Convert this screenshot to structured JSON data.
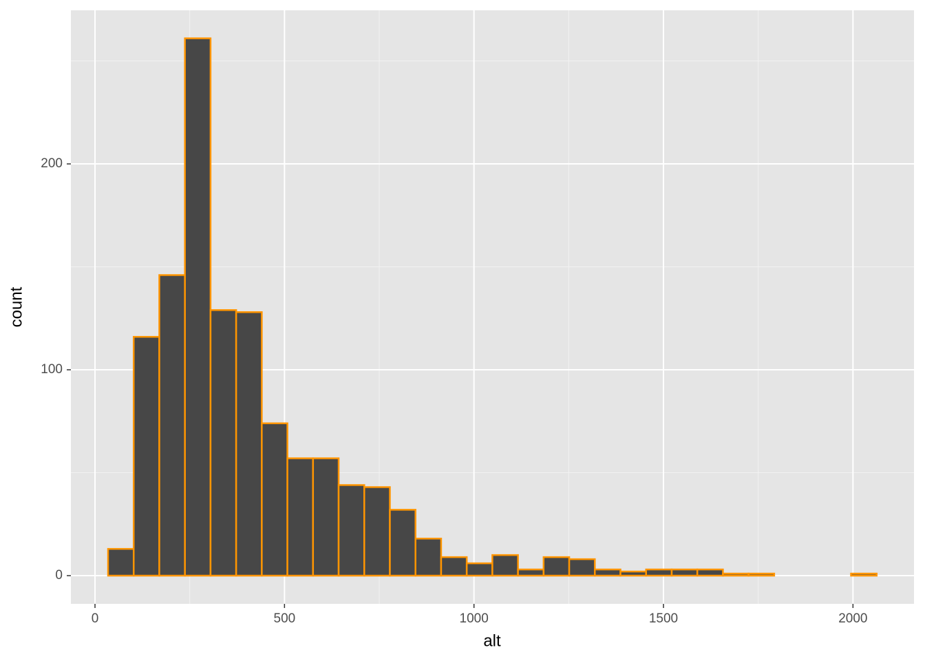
{
  "chart_data": {
    "type": "histogram",
    "x_label": "alt",
    "y_label": "count",
    "bins": [
      34.5,
      102.1,
      169.7,
      237.3,
      304.9,
      372.5,
      440.1,
      507.7,
      575.3,
      642.9,
      710.5,
      778.1,
      845.7,
      913.3,
      980.9,
      1048.5,
      1116.1,
      1183.7,
      1251.3,
      1318.9,
      1386.5,
      1454.1,
      1521.7,
      1589.3,
      1656.9,
      1724.5,
      1792.1,
      1859.7,
      1927.3,
      1994.9,
      2062.5
    ],
    "values": [
      13,
      116,
      146,
      261,
      129,
      128,
      74,
      57,
      57,
      44,
      43,
      32,
      18,
      9,
      6,
      10,
      3,
      9,
      8,
      3,
      2,
      3,
      3,
      3,
      1,
      1,
      0,
      0,
      0,
      1
    ],
    "color": "#474747",
    "edge_color": "#ff9500",
    "xlim": [
      -63.6,
      2161
    ],
    "ylim": [
      -13.7,
      274.6
    ],
    "xticks": [
      0,
      500,
      1000,
      1500,
      2000
    ],
    "yticks": [
      0,
      100,
      200
    ],
    "grid": true
  }
}
